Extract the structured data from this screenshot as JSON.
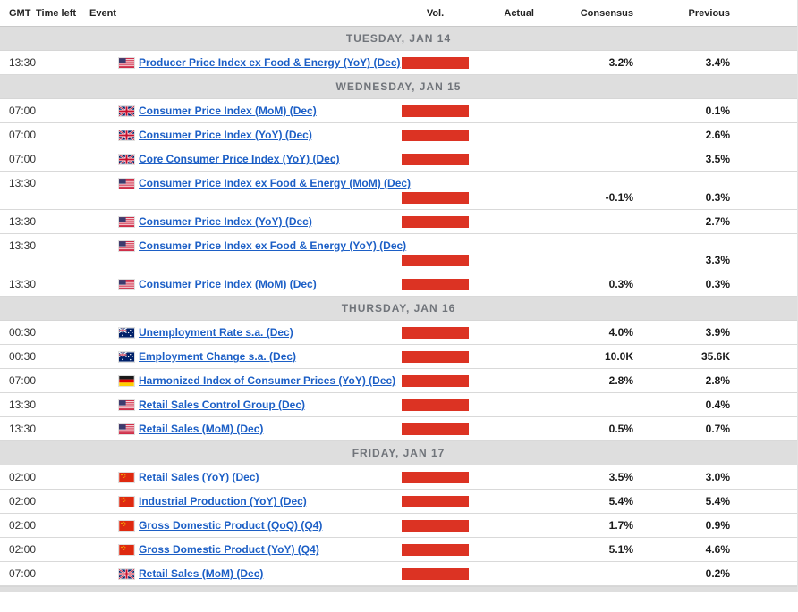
{
  "table": {
    "columns": {
      "gmt": "GMT",
      "time_left": "Time left",
      "event": "Event",
      "vol": "Vol.",
      "actual": "Actual",
      "consensus": "Consensus",
      "previous": "Previous"
    }
  },
  "colors": {
    "volume_high": "#dc3323",
    "link": "#1c5fc6",
    "separator_bg": "#dedede",
    "separator_text": "#70747a"
  },
  "days": [
    {
      "label": "TUESDAY, JAN 14",
      "events": [
        {
          "gmt": "13:30",
          "time_left": "",
          "country": "US",
          "event": "Producer Price Index ex Food & Energy (YoY) (Dec)",
          "volatility": "high",
          "actual": "",
          "consensus": "3.2%",
          "previous": "3.4%"
        }
      ]
    },
    {
      "label": "WEDNESDAY, JAN 15",
      "events": [
        {
          "gmt": "07:00",
          "time_left": "",
          "country": "GB",
          "event": "Consumer Price Index (MoM) (Dec)",
          "volatility": "high",
          "actual": "",
          "consensus": "",
          "previous": "0.1%"
        },
        {
          "gmt": "07:00",
          "time_left": "",
          "country": "GB",
          "event": "Consumer Price Index (YoY) (Dec)",
          "volatility": "high",
          "actual": "",
          "consensus": "",
          "previous": "2.6%"
        },
        {
          "gmt": "07:00",
          "time_left": "",
          "country": "GB",
          "event": "Core Consumer Price Index (YoY) (Dec)",
          "volatility": "high",
          "actual": "",
          "consensus": "",
          "previous": "3.5%"
        },
        {
          "gmt": "13:30",
          "time_left": "",
          "country": "US",
          "event": "Consumer Price Index ex Food & Energy (MoM) (Dec)",
          "volatility": "high",
          "actual": "",
          "consensus": "-0.1%",
          "previous": "0.3%"
        },
        {
          "gmt": "13:30",
          "time_left": "",
          "country": "US",
          "event": "Consumer Price Index (YoY) (Dec)",
          "volatility": "high",
          "actual": "",
          "consensus": "",
          "previous": "2.7%"
        },
        {
          "gmt": "13:30",
          "time_left": "",
          "country": "US",
          "event": "Consumer Price Index ex Food & Energy (YoY) (Dec)",
          "volatility": "high",
          "actual": "",
          "consensus": "",
          "previous": "3.3%"
        },
        {
          "gmt": "13:30",
          "time_left": "",
          "country": "US",
          "event": "Consumer Price Index (MoM) (Dec)",
          "volatility": "high",
          "actual": "",
          "consensus": "0.3%",
          "previous": "0.3%"
        }
      ]
    },
    {
      "label": "THURSDAY, JAN 16",
      "events": [
        {
          "gmt": "00:30",
          "time_left": "",
          "country": "AU",
          "event": "Unemployment Rate s.a. (Dec)",
          "volatility": "high",
          "actual": "",
          "consensus": "4.0%",
          "previous": "3.9%"
        },
        {
          "gmt": "00:30",
          "time_left": "",
          "country": "AU",
          "event": "Employment Change s.a. (Dec)",
          "volatility": "high",
          "actual": "",
          "consensus": "10.0K",
          "previous": "35.6K"
        },
        {
          "gmt": "07:00",
          "time_left": "",
          "country": "DE",
          "event": "Harmonized Index of Consumer Prices (YoY) (Dec)",
          "volatility": "high",
          "actual": "",
          "consensus": "2.8%",
          "previous": "2.8%"
        },
        {
          "gmt": "13:30",
          "time_left": "",
          "country": "US",
          "event": "Retail Sales Control Group (Dec)",
          "volatility": "high",
          "actual": "",
          "consensus": "",
          "previous": "0.4%"
        },
        {
          "gmt": "13:30",
          "time_left": "",
          "country": "US",
          "event": "Retail Sales (MoM) (Dec)",
          "volatility": "high",
          "actual": "",
          "consensus": "0.5%",
          "previous": "0.7%"
        }
      ]
    },
    {
      "label": "FRIDAY, JAN 17",
      "events": [
        {
          "gmt": "02:00",
          "time_left": "",
          "country": "CN",
          "event": "Retail Sales (YoY) (Dec)",
          "volatility": "high",
          "actual": "",
          "consensus": "3.5%",
          "previous": "3.0%"
        },
        {
          "gmt": "02:00",
          "time_left": "",
          "country": "CN",
          "event": "Industrial Production (YoY) (Dec)",
          "volatility": "high",
          "actual": "",
          "consensus": "5.4%",
          "previous": "5.4%"
        },
        {
          "gmt": "02:00",
          "time_left": "",
          "country": "CN",
          "event": "Gross Domestic Product (QoQ) (Q4)",
          "volatility": "high",
          "actual": "",
          "consensus": "1.7%",
          "previous": "0.9%"
        },
        {
          "gmt": "02:00",
          "time_left": "",
          "country": "CN",
          "event": "Gross Domestic Product (YoY) (Q4)",
          "volatility": "high",
          "actual": "",
          "consensus": "5.1%",
          "previous": "4.6%"
        },
        {
          "gmt": "07:00",
          "time_left": "",
          "country": "GB",
          "event": "Retail Sales (MoM) (Dec)",
          "volatility": "high",
          "actual": "",
          "consensus": "",
          "previous": "0.2%"
        }
      ]
    }
  ]
}
